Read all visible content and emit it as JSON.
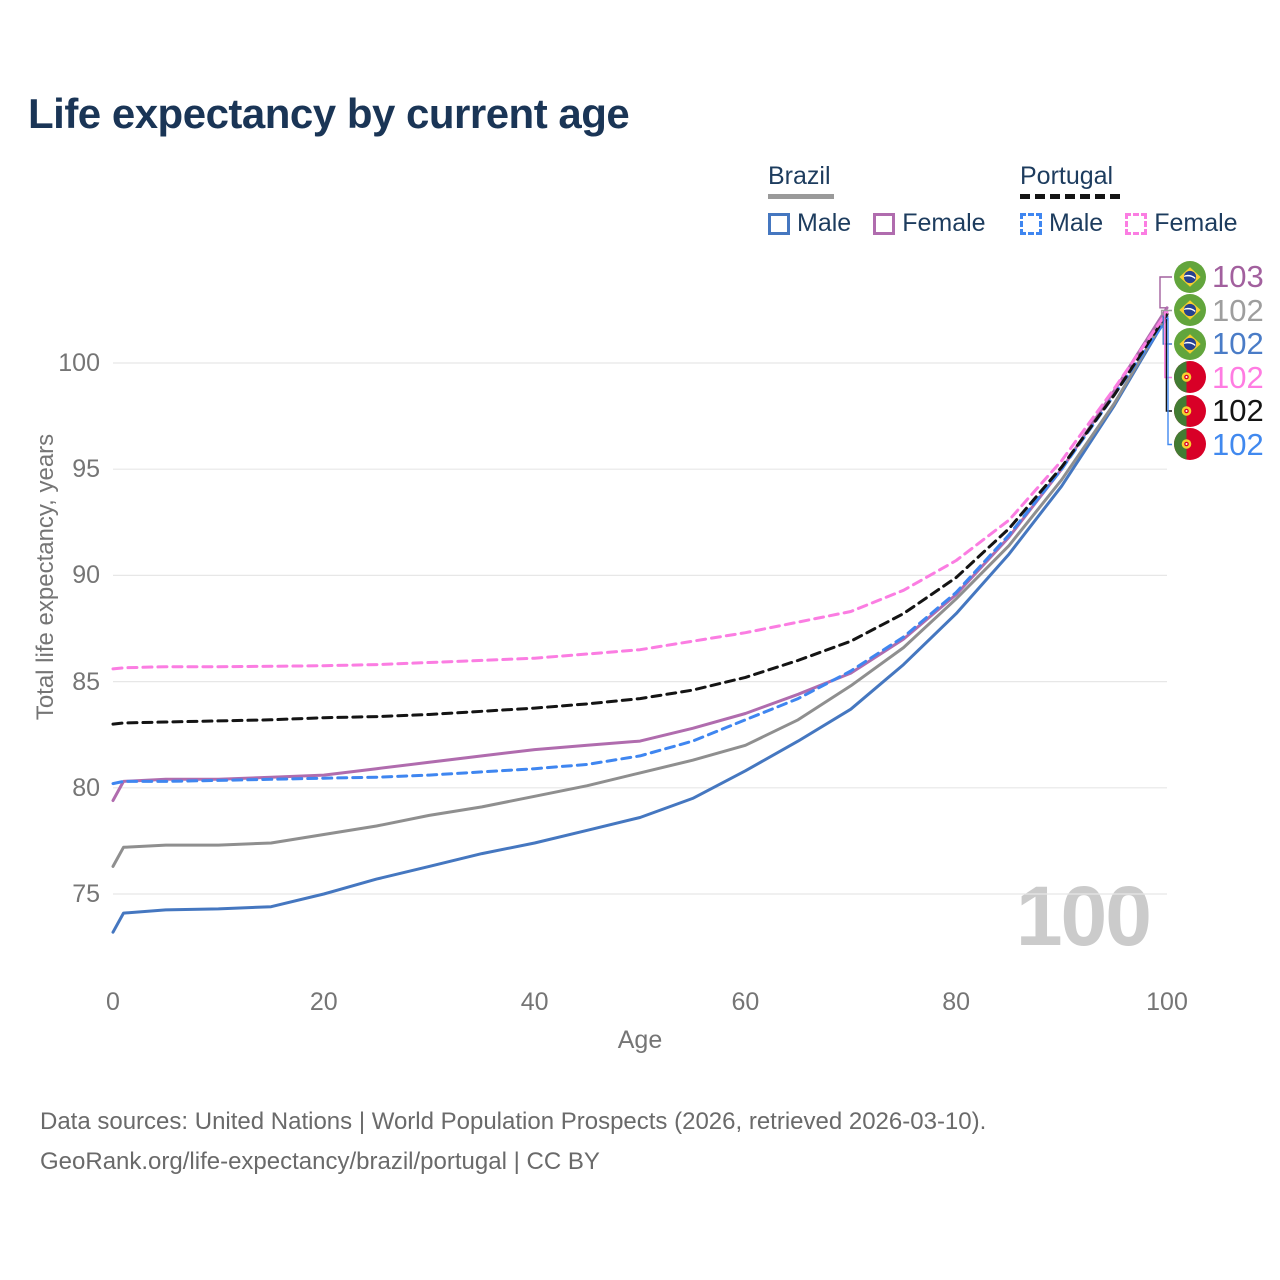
{
  "title": "Life expectancy by current age",
  "legend": {
    "brazil": {
      "country": "Brazil",
      "underline_color": "#9a9a9a",
      "male_label": "Male",
      "female_label": "Female"
    },
    "portugal": {
      "country": "Portugal",
      "underline_color": "#141414",
      "male_label": "Male",
      "female_label": "Female"
    }
  },
  "watermark": "100",
  "chart_data": {
    "type": "line",
    "title": "Life expectancy by current age",
    "xlabel": "Age",
    "ylabel": "Total life expectancy, years",
    "xlim": [
      0,
      100
    ],
    "ylim": [
      72,
      104
    ],
    "xticks": [
      0,
      20,
      40,
      60,
      80,
      100
    ],
    "yticks": [
      75,
      80,
      85,
      90,
      95,
      100
    ],
    "grid": "horizontal",
    "legend_position": "top-right",
    "x": [
      0,
      1,
      5,
      10,
      15,
      20,
      25,
      30,
      35,
      40,
      45,
      50,
      55,
      60,
      65,
      70,
      75,
      80,
      85,
      90,
      95,
      100
    ],
    "series": [
      {
        "name": "Brazil Male",
        "country": "Brazil",
        "sex": "Male",
        "color": "#4577c0",
        "dash": false,
        "values": [
          73.2,
          74.1,
          74.25,
          74.3,
          74.4,
          75.0,
          75.7,
          76.3,
          76.9,
          77.4,
          78.0,
          78.6,
          79.5,
          80.8,
          82.2,
          83.7,
          85.8,
          88.2,
          91.0,
          94.2,
          98.0,
          102.2
        ]
      },
      {
        "name": "Brazil Both sexes",
        "country": "Brazil",
        "sex": "Both",
        "color": "#8f8f8f",
        "dash": false,
        "values": [
          76.3,
          77.2,
          77.3,
          77.3,
          77.4,
          77.8,
          78.2,
          78.7,
          79.1,
          79.6,
          80.1,
          80.7,
          81.3,
          82.0,
          83.2,
          84.8,
          86.6,
          88.9,
          91.4,
          94.5,
          98.1,
          102.3
        ]
      },
      {
        "name": "Brazil Female",
        "country": "Brazil",
        "sex": "Female",
        "color": "#b06cae",
        "dash": false,
        "values": [
          79.4,
          80.3,
          80.4,
          80.4,
          80.5,
          80.6,
          80.9,
          81.2,
          81.5,
          81.8,
          82.0,
          82.2,
          82.8,
          83.5,
          84.4,
          85.4,
          87.0,
          89.1,
          91.8,
          95.0,
          98.7,
          102.6
        ]
      },
      {
        "name": "Portugal Male",
        "country": "Portugal",
        "sex": "Male",
        "color": "#3f86f0",
        "dash": true,
        "values": [
          80.2,
          80.3,
          80.3,
          80.35,
          80.4,
          80.45,
          80.5,
          80.6,
          80.75,
          80.9,
          81.1,
          81.5,
          82.2,
          83.2,
          84.2,
          85.5,
          87.1,
          89.2,
          91.9,
          95.0,
          98.5,
          102.1
        ]
      },
      {
        "name": "Portugal Both sexes",
        "country": "Portugal",
        "sex": "Both",
        "color": "#141414",
        "dash": true,
        "values": [
          83.0,
          83.05,
          83.1,
          83.15,
          83.2,
          83.3,
          83.35,
          83.45,
          83.6,
          83.75,
          83.95,
          84.2,
          84.6,
          85.2,
          86.0,
          86.9,
          88.2,
          89.9,
          92.2,
          95.1,
          98.5,
          102.3
        ]
      },
      {
        "name": "Portugal Female",
        "country": "Portugal",
        "sex": "Female",
        "color": "#fb7de2",
        "dash": true,
        "values": [
          85.6,
          85.65,
          85.7,
          85.7,
          85.72,
          85.75,
          85.8,
          85.9,
          86.0,
          86.1,
          86.3,
          86.5,
          86.9,
          87.3,
          87.8,
          88.3,
          89.3,
          90.7,
          92.6,
          95.4,
          98.8,
          102.4
        ]
      }
    ],
    "end_labels": [
      {
        "value": "103",
        "color": "#a2609e",
        "flag": "brazil",
        "series_index": 2
      },
      {
        "value": "102",
        "color": "#9e9e9e",
        "flag": "brazil",
        "series_index": 1
      },
      {
        "value": "102",
        "color": "#4a7cc7",
        "flag": "brazil",
        "series_index": 0
      },
      {
        "value": "102",
        "color": "#ff7ce2",
        "flag": "portugal",
        "series_index": 5
      },
      {
        "value": "102",
        "color": "#141414",
        "flag": "portugal",
        "series_index": 4
      },
      {
        "value": "102",
        "color": "#4189ef",
        "flag": "portugal",
        "series_index": 3
      }
    ],
    "grid_color": "#e7e7e7"
  },
  "footer": {
    "line1": "Data sources: United Nations | World Population Prospects (2026, retrieved 2026-03-10).",
    "line2": "GeoRank.org/life-expectancy/brazil/portugal | CC BY"
  }
}
